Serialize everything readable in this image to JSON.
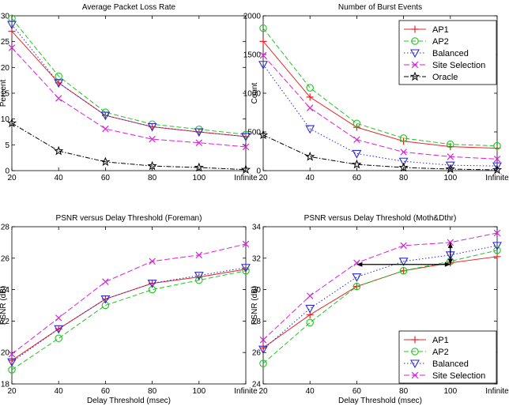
{
  "colors": {
    "AP1": "#e8242b",
    "AP2": "#22c422",
    "Balanced": "#2a2ad6",
    "Site Selection": "#dd1fdd",
    "Oracle": "#000000",
    "arrow": "#000000"
  },
  "chart_data": [
    {
      "type": "line",
      "title": "Average Packet Loss Rate",
      "xlabel": "",
      "ylabel": "Percent",
      "categories": [
        "20",
        "40",
        "60",
        "80",
        "100",
        "Infinite"
      ],
      "ylim": [
        0,
        30
      ],
      "yticks": [
        "0",
        "5",
        "10",
        "15",
        "20",
        "25",
        "30"
      ],
      "grid": false,
      "legend": null,
      "series": [
        {
          "name": "AP1",
          "values": [
            27.0,
            17.0,
            10.7,
            8.5,
            7.5,
            6.6
          ]
        },
        {
          "name": "AP2",
          "values": [
            29.5,
            18.3,
            11.3,
            9.0,
            8.0,
            7.0
          ]
        },
        {
          "name": "Balanced",
          "values": [
            28.3,
            17.0,
            10.7,
            8.5,
            7.5,
            6.6
          ]
        },
        {
          "name": "Site Selection",
          "values": [
            23.8,
            14.0,
            8.1,
            6.1,
            5.4,
            4.6
          ]
        },
        {
          "name": "Oracle",
          "values": [
            9.2,
            3.8,
            1.7,
            0.9,
            0.6,
            0.2
          ]
        }
      ]
    },
    {
      "type": "line",
      "title": "Number of Burst Events",
      "xlabel": "",
      "ylabel": "Count",
      "categories": [
        "20",
        "40",
        "60",
        "80",
        "100",
        "Infinite"
      ],
      "ylim": [
        0,
        2000
      ],
      "yticks": [
        "0",
        "500",
        "1000",
        "1500",
        "2000"
      ],
      "grid": false,
      "legend": {
        "position": "top-right",
        "entries": [
          "AP1",
          "AP2",
          "Balanced",
          "Site Selection",
          "Oracle"
        ]
      },
      "series": [
        {
          "name": "AP1",
          "values": [
            1670,
            950,
            560,
            380,
            310,
            290
          ]
        },
        {
          "name": "AP2",
          "values": [
            1840,
            1070,
            610,
            420,
            340,
            320
          ]
        },
        {
          "name": "Balanced",
          "values": [
            1370,
            540,
            220,
            120,
            70,
            60
          ]
        },
        {
          "name": "Site Selection",
          "values": [
            1490,
            810,
            400,
            240,
            180,
            150
          ]
        },
        {
          "name": "Oracle",
          "values": [
            460,
            180,
            80,
            40,
            20,
            10
          ]
        }
      ]
    },
    {
      "type": "line",
      "title": "PSNR versus Delay Threshold (Foreman)",
      "xlabel": "Delay Threshold (msec)",
      "ylabel": "PSNR (dB)",
      "categories": [
        "20",
        "40",
        "60",
        "80",
        "100",
        "Infinite"
      ],
      "ylim": [
        18,
        28
      ],
      "yticks": [
        "18",
        "20",
        "22",
        "24",
        "26",
        "28"
      ],
      "grid": false,
      "legend": null,
      "series": [
        {
          "name": "AP1",
          "values": [
            19.5,
            21.5,
            23.4,
            24.4,
            24.8,
            25.3
          ]
        },
        {
          "name": "AP2",
          "values": [
            18.9,
            20.9,
            23.0,
            24.0,
            24.6,
            25.2
          ]
        },
        {
          "name": "Balanced",
          "values": [
            19.4,
            21.5,
            23.4,
            24.4,
            24.9,
            25.4
          ]
        },
        {
          "name": "Site Selection",
          "values": [
            19.9,
            22.2,
            24.5,
            25.8,
            26.2,
            26.9
          ]
        }
      ]
    },
    {
      "type": "line",
      "title": "PSNR versus Delay Threshold (Moth&Dthr)",
      "xlabel": "Delay Threshold (msec)",
      "ylabel": "PSNR (dB)",
      "categories": [
        "20",
        "40",
        "60",
        "80",
        "100",
        "Infinite"
      ],
      "ylim": [
        24,
        34
      ],
      "yticks": [
        "24",
        "26",
        "28",
        "30",
        "32",
        "34"
      ],
      "grid": false,
      "legend": {
        "position": "bottom-right",
        "entries": [
          "AP1",
          "AP2",
          "Balanced",
          "Site Selection"
        ]
      },
      "series": [
        {
          "name": "AP1",
          "values": [
            26.3,
            28.4,
            30.2,
            31.2,
            31.7,
            32.1
          ]
        },
        {
          "name": "AP2",
          "values": [
            25.3,
            27.9,
            30.2,
            31.2,
            31.8,
            32.5
          ]
        },
        {
          "name": "Balanced",
          "values": [
            26.2,
            28.8,
            30.8,
            31.8,
            32.2,
            32.8
          ]
        },
        {
          "name": "Site Selection",
          "values": [
            26.8,
            29.6,
            31.7,
            32.8,
            33.0,
            33.6
          ]
        }
      ],
      "annotations": [
        {
          "type": "double-arrow",
          "from": [
            2,
            31.6
          ],
          "to": [
            4,
            31.6
          ]
        },
        {
          "type": "double-arrow",
          "from": [
            4,
            31.6
          ],
          "to": [
            4,
            33.0
          ]
        }
      ]
    }
  ]
}
